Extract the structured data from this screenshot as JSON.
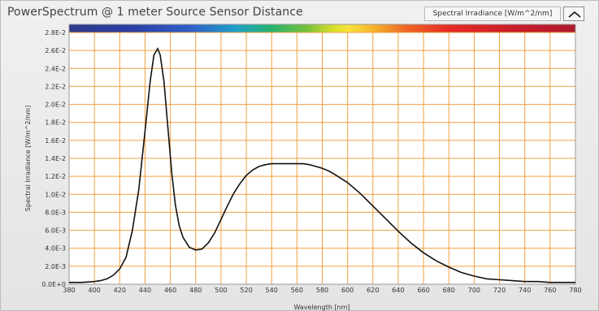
{
  "chart_data": {
    "type": "line",
    "title": "PowerSpectrum @ 1 meter Source Sensor Distance",
    "xlabel": "Wavelength [nm]",
    "ylabel": "Spectral Irradiance [W/m^2/nm]",
    "legend_label": "Spectral Irradiance [W/m^2/nm]",
    "legend_placement": "top-right",
    "grid": true,
    "colors": {
      "grid": "#f0a040",
      "line": "#111111",
      "plot_bg": "#ffffff"
    },
    "xlim": [
      380,
      780
    ],
    "ylim": [
      0,
      0.028
    ],
    "x_ticks": [
      "380",
      "400",
      "420",
      "440",
      "460",
      "480",
      "500",
      "520",
      "540",
      "560",
      "580",
      "600",
      "620",
      "640",
      "660",
      "680",
      "700",
      "720",
      "740",
      "760",
      "780"
    ],
    "y_ticks": [
      "0.0E+0",
      "2.0E-3",
      "4.0E-3",
      "6.0E-3",
      "8.0E-3",
      "1.0E-2",
      "1.2E-2",
      "1.4E-2",
      "1.6E-2",
      "1.8E-2",
      "2.0E-2",
      "2.2E-2",
      "2.4E-2",
      "2.6E-2",
      "2.8E-2"
    ],
    "series": [
      {
        "values": {
          "x": [
            380,
            390,
            400,
            405,
            410,
            415,
            420,
            425,
            430,
            435,
            440,
            444,
            447,
            450,
            452,
            455,
            458,
            461,
            464,
            467,
            470,
            475,
            480,
            485,
            490,
            495,
            500,
            505,
            510,
            515,
            520,
            525,
            530,
            535,
            540,
            545,
            550,
            555,
            560,
            565,
            570,
            575,
            580,
            585,
            590,
            600,
            610,
            620,
            630,
            640,
            650,
            660,
            670,
            680,
            690,
            700,
            710,
            720,
            730,
            740,
            750,
            760,
            770,
            780
          ],
          "y": [
            0.0002,
            0.0002,
            0.0003,
            0.0004,
            0.0006,
            0.001,
            0.0017,
            0.003,
            0.006,
            0.0105,
            0.017,
            0.0225,
            0.0255,
            0.0262,
            0.0255,
            0.0225,
            0.0175,
            0.0125,
            0.0088,
            0.0065,
            0.0052,
            0.0041,
            0.0038,
            0.0039,
            0.0046,
            0.0057,
            0.0072,
            0.0087,
            0.0101,
            0.0112,
            0.0121,
            0.0127,
            0.0131,
            0.0133,
            0.0134,
            0.0134,
            0.0134,
            0.0134,
            0.0134,
            0.0134,
            0.0133,
            0.0131,
            0.0129,
            0.0126,
            0.0122,
            0.0113,
            0.0101,
            0.0087,
            0.0073,
            0.0059,
            0.0046,
            0.0035,
            0.0026,
            0.0019,
            0.0013,
            0.0009,
            0.0006,
            0.0005,
            0.0004,
            0.0003,
            0.0003,
            0.0002,
            0.0002,
            0.0002
          ]
        }
      }
    ]
  }
}
